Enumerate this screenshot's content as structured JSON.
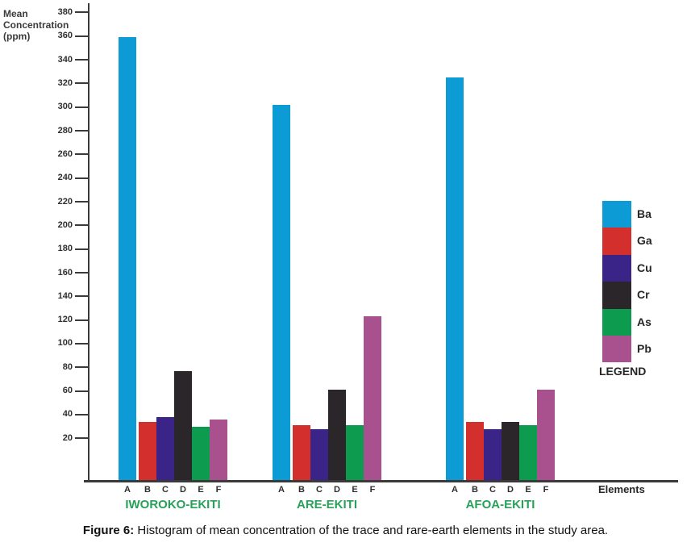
{
  "chart_data": {
    "type": "bar",
    "title": "",
    "ylabel_lines": [
      "Mean",
      "Concentration",
      "(ppm)"
    ],
    "xlabel": "Elements",
    "ylim": [
      0,
      390
    ],
    "y_ticks": [
      380,
      360,
      340,
      320,
      300,
      280,
      260,
      240,
      220,
      200,
      180,
      160,
      140,
      120,
      100,
      80,
      60,
      40,
      20
    ],
    "grid": "off",
    "legend_position": "right",
    "legend_title": "LEGEND",
    "bar_categories": [
      "A",
      "B",
      "C",
      "D",
      "E",
      "F"
    ],
    "elements": [
      {
        "symbol": "Ba",
        "color": "#0d9bd6"
      },
      {
        "symbol": "Ga",
        "color": "#d32f2d"
      },
      {
        "symbol": "Cu",
        "color": "#3a2487"
      },
      {
        "symbol": "Cr",
        "color": "#2a262a"
      },
      {
        "symbol": "As",
        "color": "#0d9b4f"
      },
      {
        "symbol": "Pb",
        "color": "#a9518f"
      }
    ],
    "groups": [
      {
        "name": "IWOROKO-EKITI",
        "values": [
          359,
          34,
          38,
          77,
          30,
          36
        ]
      },
      {
        "name": "ARE-EKITI",
        "values": [
          302,
          31,
          28,
          61,
          31,
          123
        ]
      },
      {
        "name": "AFOA-EKITI",
        "values": [
          325,
          34,
          28,
          34,
          31,
          61
        ]
      }
    ],
    "group_label_color": "#27a157"
  },
  "caption": {
    "label": "Figure 6:",
    "text": " Histogram of mean concentration of the trace and rare-earth elements in the study area."
  }
}
